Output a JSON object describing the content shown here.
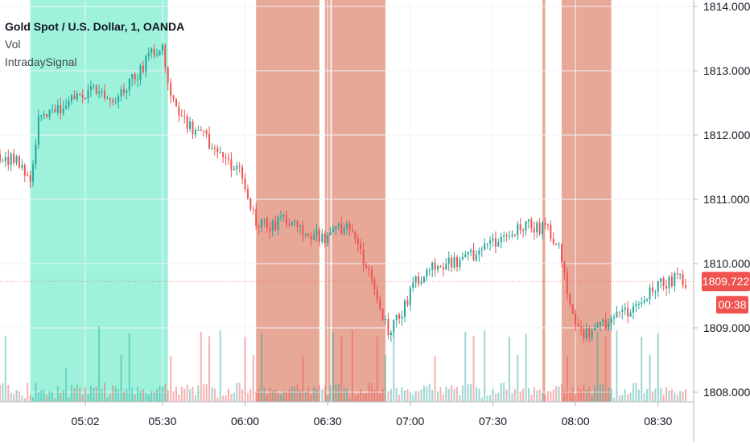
{
  "chart_data": {
    "type": "candlestick",
    "title": "Gold Spot / U.S. Dollar, 1, OANDA",
    "indicators": [
      "Vol",
      "IntradaySignal"
    ],
    "x_tick_labels": [
      "05:02",
      "05:30",
      "06:00",
      "06:30",
      "07:00",
      "07:30",
      "08:00",
      "08:30"
    ],
    "x_tick_minutes": [
      302,
      330,
      360,
      390,
      420,
      450,
      480,
      510
    ],
    "y_tick_labels": [
      "1814.000",
      "1813.000",
      "1812.000",
      "1811.000",
      "1810.000",
      "1809.000",
      "1808.000"
    ],
    "y_ticks": [
      1814,
      1813,
      1812,
      1811,
      1810,
      1809,
      1808
    ],
    "x_range_minutes": [
      271,
      520
    ],
    "y_range": [
      1807.85,
      1814.1
    ],
    "last_price": "1809.722",
    "countdown": "00:38",
    "signal_bands": [
      {
        "start": 282,
        "end": 332,
        "signal": "buy"
      },
      {
        "start": 364,
        "end": 387,
        "signal": "sell"
      },
      {
        "start": 389,
        "end": 391,
        "signal": "sell"
      },
      {
        "start": 391.5,
        "end": 411,
        "signal": "sell"
      },
      {
        "start": 468,
        "end": 469,
        "signal": "sell"
      },
      {
        "start": 475,
        "end": 493,
        "signal": "sell"
      }
    ],
    "path_points": [
      [
        271,
        1811.7
      ],
      [
        279,
        1811.55
      ],
      [
        282,
        1811.2
      ],
      [
        285,
        1812.3
      ],
      [
        290,
        1812.3
      ],
      [
        297,
        1812.6
      ],
      [
        305,
        1812.7
      ],
      [
        313,
        1812.5
      ],
      [
        320,
        1812.9
      ],
      [
        327,
        1813.3
      ],
      [
        330,
        1813.4
      ],
      [
        332,
        1812.8
      ],
      [
        338,
        1812.2
      ],
      [
        345,
        1812.0
      ],
      [
        352,
        1811.6
      ],
      [
        358,
        1811.5
      ],
      [
        364,
        1810.6
      ],
      [
        370,
        1810.6
      ],
      [
        377,
        1810.7
      ],
      [
        382,
        1810.5
      ],
      [
        388,
        1810.4
      ],
      [
        392,
        1810.5
      ],
      [
        397,
        1810.6
      ],
      [
        405,
        1809.9
      ],
      [
        412,
        1808.9
      ],
      [
        415,
        1809.1
      ],
      [
        422,
        1809.7
      ],
      [
        428,
        1810.0
      ],
      [
        434,
        1810.0
      ],
      [
        440,
        1810.1
      ],
      [
        446,
        1810.2
      ],
      [
        452,
        1810.4
      ],
      [
        458,
        1810.5
      ],
      [
        464,
        1810.6
      ],
      [
        470,
        1810.5
      ],
      [
        474,
        1810.3
      ],
      [
        478,
        1809.4
      ],
      [
        482,
        1808.9
      ],
      [
        488,
        1809.0
      ],
      [
        494,
        1809.15
      ],
      [
        500,
        1809.3
      ],
      [
        506,
        1809.5
      ],
      [
        512,
        1809.7
      ],
      [
        516,
        1809.75
      ],
      [
        520,
        1809.72
      ]
    ],
    "volume_max": 60,
    "colors": {
      "up": "#26a69a",
      "down": "#ef5350",
      "buy_band": "#9ef2db",
      "sell_band": "#e8a898",
      "price_tag": "#ef5350",
      "grid": "#f0f3fa",
      "axis_text": "#131722"
    }
  }
}
